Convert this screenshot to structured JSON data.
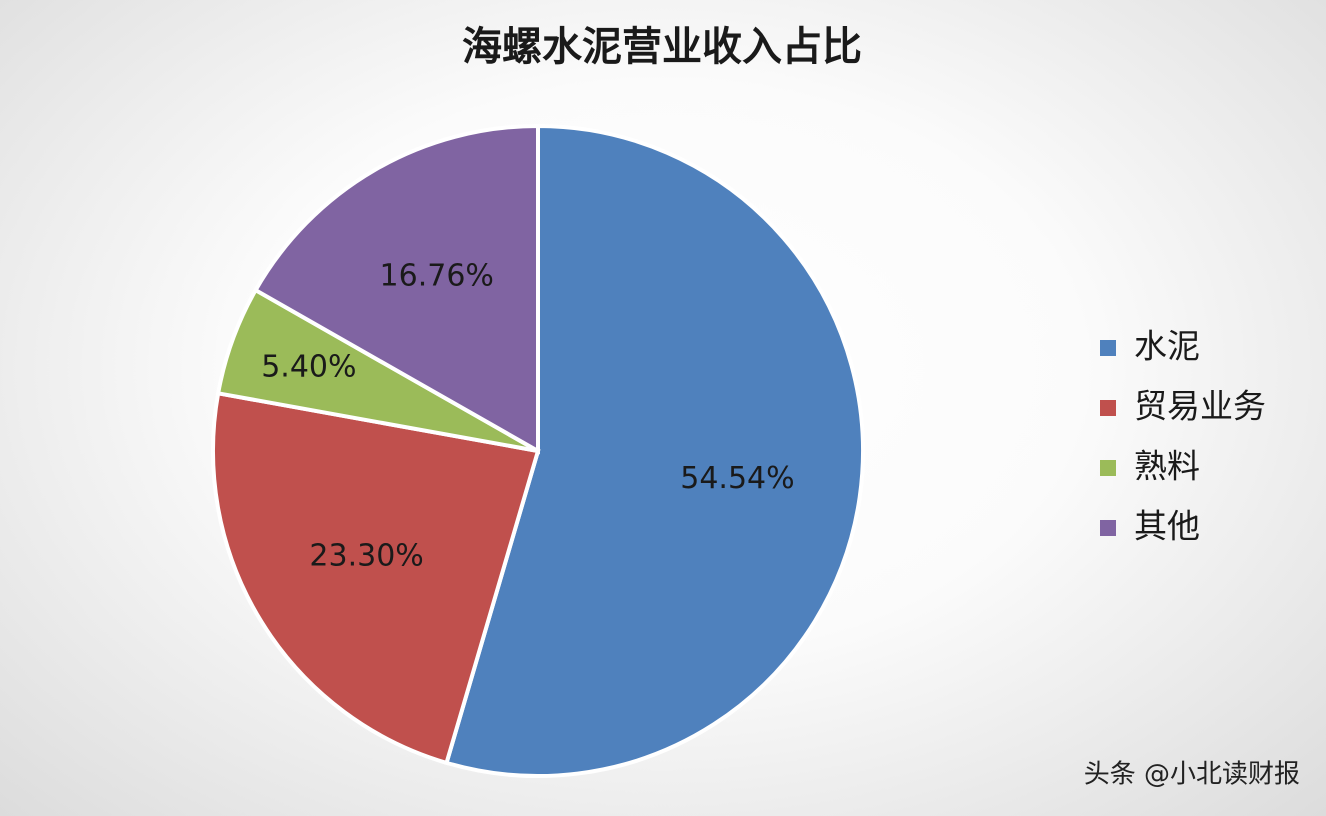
{
  "chart_data": {
    "type": "pie",
    "title": "海螺水泥营业收入占比",
    "categories": [
      "水泥",
      "贸易业务",
      "熟料",
      "其他"
    ],
    "values": [
      54.54,
      23.3,
      5.4,
      16.76
    ],
    "value_labels": [
      "54.54%",
      "23.30%",
      "5.40%",
      "16.76%"
    ],
    "colors": [
      "#4f81bd",
      "#c0504d",
      "#9bbb59",
      "#8064a2"
    ],
    "legend": "right",
    "watermark": "头条 @小北读财报"
  }
}
